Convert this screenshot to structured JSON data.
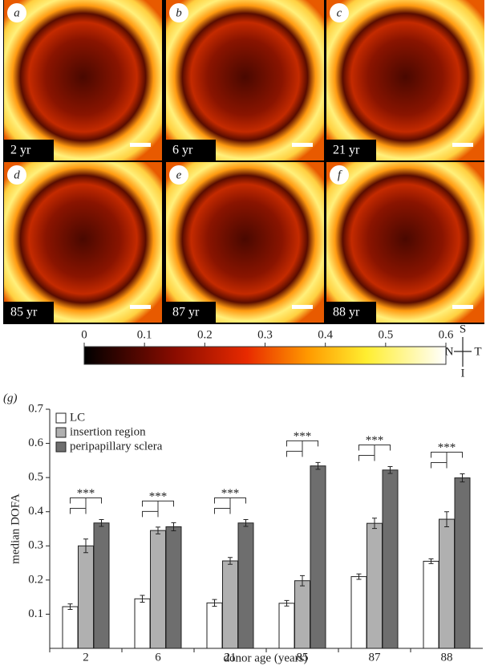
{
  "panels": [
    {
      "letter": "a",
      "age": "2 yr"
    },
    {
      "letter": "b",
      "age": "6 yr"
    },
    {
      "letter": "c",
      "age": "21 yr"
    },
    {
      "letter": "d",
      "age": "85 yr"
    },
    {
      "letter": "e",
      "age": "87 yr"
    },
    {
      "letter": "f",
      "age": "88 yr"
    }
  ],
  "colorbar": {
    "lim": [
      0,
      0.6
    ],
    "ticks": [
      0,
      0.1,
      0.2,
      0.3,
      0.4,
      0.5,
      0.6
    ]
  },
  "compass": {
    "top": "S",
    "left": "N",
    "right": "T",
    "bottom": "I"
  },
  "chart_data": {
    "type": "bar",
    "panel_label": "(g)",
    "x_label": "donor age (years)",
    "y_label": "median DOFA",
    "categories": [
      "2",
      "6",
      "21",
      "85",
      "87",
      "88"
    ],
    "series": [
      {
        "name": "LC",
        "color": "#ffffff",
        "values": [
          0.122,
          0.145,
          0.133,
          0.132,
          0.21,
          0.255
        ],
        "errors": [
          0.008,
          0.01,
          0.01,
          0.008,
          0.008,
          0.007
        ]
      },
      {
        "name": "insertion region",
        "color": "#b0b0b0",
        "values": [
          0.3,
          0.345,
          0.256,
          0.198,
          0.366,
          0.378
        ],
        "errors": [
          0.02,
          0.01,
          0.01,
          0.015,
          0.015,
          0.022
        ]
      },
      {
        "name": "peripapillary sclera",
        "color": "#6e6e6e",
        "values": [
          0.367,
          0.356,
          0.367,
          0.534,
          0.522,
          0.499
        ],
        "errors": [
          0.01,
          0.012,
          0.01,
          0.01,
          0.01,
          0.012
        ]
      }
    ],
    "annotations": [
      "***",
      "***",
      "***",
      "***",
      "***",
      "***"
    ],
    "ylim": [
      0,
      0.7
    ],
    "yticks": [
      0.1,
      0.2,
      0.3,
      0.4,
      0.5,
      0.6,
      0.7
    ],
    "legend": "top-left"
  }
}
